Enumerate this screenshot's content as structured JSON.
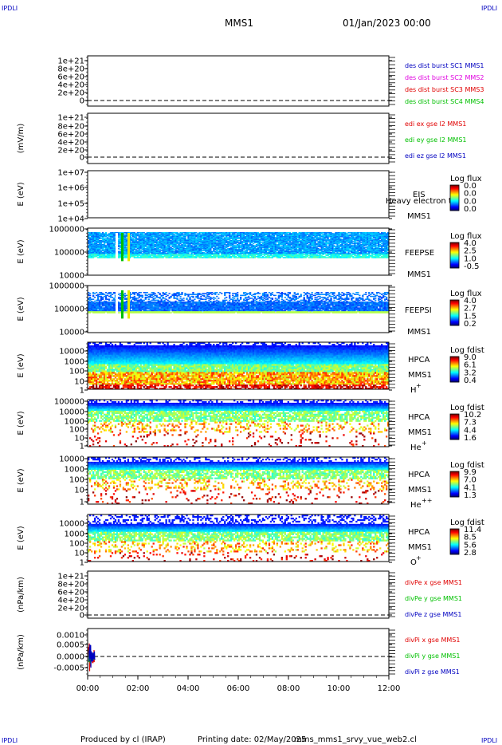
{
  "corner_label": "IPDLI",
  "header": {
    "spacecraft": "MMS1",
    "date": "01/Jan/2023 00:00"
  },
  "footer": {
    "produced_by": "Produced by cl (IRAP)",
    "printing_date": "Printing date: 02/May/2025",
    "filename": "mms_mms1_srvy_vue_web2.cl"
  },
  "colors": {
    "red": "#e00000",
    "green": "#00c000",
    "blue": "#0000c0",
    "magenta": "#e000e0",
    "dark_green": "#00b000"
  },
  "chart_data": {
    "type": "multi-panel",
    "x_ticks": [
      "00:00",
      "02:00",
      "04:00",
      "06:00",
      "08:00",
      "10:00",
      "12:00"
    ],
    "panels": [
      {
        "id": "des",
        "type": "line",
        "ylabel": "",
        "ticks": [
          "1e+21",
          "8e+20",
          "6e+20",
          "4e+20",
          "2e+20",
          "0"
        ],
        "legend": [
          {
            "text": "des dist burst SC1 MMS1",
            "color": "#0000c0"
          },
          {
            "text": "des dist burst SC2 MMS2",
            "color": "#e000e0"
          },
          {
            "text": "des dist burst SC3 MMS3",
            "color": "#e00000"
          },
          {
            "text": "des dist burst SC4 MMS4",
            "color": "#00c000"
          }
        ]
      },
      {
        "id": "edi",
        "type": "line",
        "ylabel": "(mV/m)",
        "ticks": [
          "1e+21",
          "8e+20",
          "6e+20",
          "4e+20",
          "2e+20",
          "0"
        ],
        "legend": [
          {
            "text": "edi ex gse l2 MMS1",
            "color": "#e00000"
          },
          {
            "text": "edi ey gse l2 MMS1",
            "color": "#00c000"
          },
          {
            "text": "edi ez gse l2 MMS1",
            "color": "#0000c0"
          }
        ]
      },
      {
        "id": "eis",
        "type": "heatmap",
        "ylabel": "E (eV)",
        "ticks": [
          "1e+07",
          "1e+06",
          "1e+05",
          "1e+04"
        ],
        "labels": [
          "EIS",
          "Heavy electron to",
          "MMS1"
        ],
        "cb_title": "Log flux",
        "cb_ticks": [
          "0.0",
          "0.0",
          "0.0",
          "0.0"
        ]
      },
      {
        "id": "feepse",
        "type": "heatmap",
        "ylabel": "E (eV)",
        "ticks": [
          "1000000",
          "100000",
          "10000"
        ],
        "labels": [
          "FEEPSE",
          "MMS1"
        ],
        "cb_title": "Log flux",
        "cb_ticks": [
          "4.0",
          "2.5",
          "1.0",
          "-0.5"
        ]
      },
      {
        "id": "feepsi",
        "type": "heatmap",
        "ylabel": "E (eV)",
        "ticks": [
          "1000000",
          "100000",
          "10000"
        ],
        "labels": [
          "FEEPSI",
          "MMS1"
        ],
        "cb_title": "Log flux",
        "cb_ticks": [
          "4.0",
          "2.7",
          "1.5",
          "0.2"
        ]
      },
      {
        "id": "hpca_h",
        "type": "heatmap",
        "ylabel": "E (eV)",
        "ticks": [
          "10000",
          "1000",
          "100",
          "10",
          "1"
        ],
        "labels": [
          "HPCA",
          "MMS1",
          "H",
          "+"
        ],
        "cb_title": "Log fdist",
        "cb_ticks": [
          "9.0",
          "6.1",
          "3.2",
          "0.4"
        ]
      },
      {
        "id": "hpca_he",
        "type": "heatmap",
        "ylabel": "E (eV)",
        "ticks": [
          "100000",
          "10000",
          "1000",
          "100",
          "10",
          "1"
        ],
        "labels": [
          "HPCA",
          "MMS1",
          "He",
          "+"
        ],
        "cb_title": "Log fdist",
        "cb_ticks": [
          "10.2",
          "7.3",
          "4.4",
          "1.6"
        ]
      },
      {
        "id": "hpca_hepp",
        "type": "heatmap",
        "ylabel": "E (eV)",
        "ticks": [
          "10000",
          "1000",
          "100",
          "10",
          "1"
        ],
        "labels": [
          "HPCA",
          "MMS1",
          "He",
          "++"
        ],
        "cb_title": "Log fdist",
        "cb_ticks": [
          "9.9",
          "7.0",
          "4.1",
          "1.3"
        ]
      },
      {
        "id": "hpca_o",
        "type": "heatmap",
        "ylabel": "E (eV)",
        "ticks": [
          "10000",
          "1000",
          "100",
          "10",
          "1"
        ],
        "labels": [
          "HPCA",
          "MMS1",
          "O",
          "+"
        ],
        "cb_title": "Log fdist",
        "cb_ticks": [
          "11.4",
          "8.5",
          "5.6",
          "2.8"
        ]
      },
      {
        "id": "divpe",
        "type": "line",
        "ylabel": "(nPa/km)",
        "ticks": [
          "1e+21",
          "8e+20",
          "6e+20",
          "4e+20",
          "2e+20",
          "0"
        ],
        "legend": [
          {
            "text": "divPe x gse MMS1",
            "color": "#e00000"
          },
          {
            "text": "divPe y gse MMS1",
            "color": "#00c000"
          },
          {
            "text": "divPe z gse MMS1",
            "color": "#0000c0"
          }
        ]
      },
      {
        "id": "divpi",
        "type": "line",
        "ylabel": "(nPa/km)",
        "ticks": [
          "0.0010",
          "0.0005",
          "0.0000",
          "-0.0005"
        ],
        "legend": [
          {
            "text": "divPi x gse MMS1",
            "color": "#e00000"
          },
          {
            "text": "divPi y gse MMS1",
            "color": "#00c000"
          },
          {
            "text": "divPi z gse MMS1",
            "color": "#0000c0"
          }
        ]
      }
    ]
  }
}
